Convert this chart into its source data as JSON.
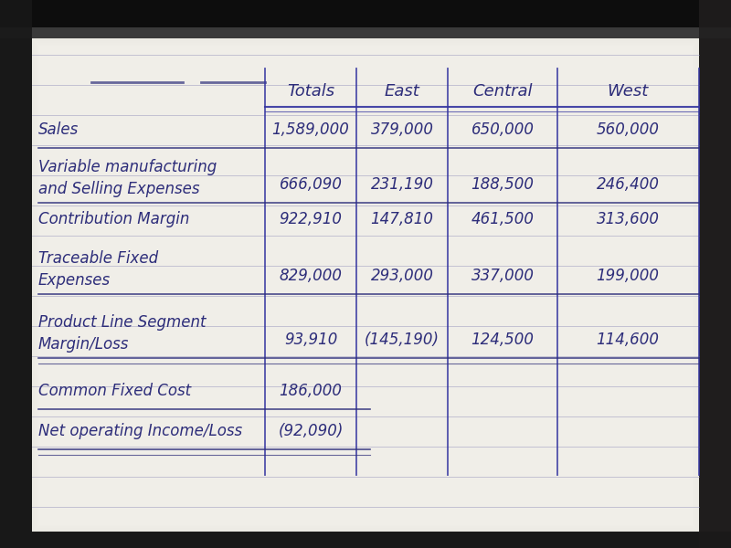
{
  "columns": [
    "Totals",
    "East",
    "Central",
    "West"
  ],
  "rows": [
    {
      "label": "Sales",
      "values": [
        "1,589,000",
        "379,000",
        "650,000",
        "560,000"
      ],
      "underline_full": true,
      "underline_short": false,
      "double_underline": false
    },
    {
      "label": "Variable manufacturing\nand Selling Expenses",
      "values": [
        "666,090",
        "231,190",
        "188,500",
        "246,400"
      ],
      "underline_full": true,
      "underline_short": false,
      "double_underline": false
    },
    {
      "label": "Contribution Margin",
      "values": [
        "922,910",
        "147,810",
        "461,500",
        "313,600"
      ],
      "underline_full": false,
      "underline_short": false,
      "double_underline": false
    },
    {
      "label": "Traceable Fixed\nExpenses",
      "values": [
        "829,000",
        "293,000",
        "337,000",
        "199,000"
      ],
      "underline_full": true,
      "underline_short": false,
      "double_underline": false
    },
    {
      "label": "Product Line Segment\nMargin/Loss",
      "values": [
        "93,910",
        "(145,190)",
        "124,500",
        "114,600"
      ],
      "underline_full": true,
      "underline_short": false,
      "double_underline": true
    },
    {
      "label": "Common Fixed Cost",
      "values": [
        "186,000",
        "",
        "",
        ""
      ],
      "underline_full": false,
      "underline_short": true,
      "double_underline": false
    },
    {
      "label": "Net operating Income/Loss",
      "values": [
        "(92,090)",
        "",
        "",
        ""
      ],
      "underline_full": false,
      "underline_short": true,
      "double_underline": true
    }
  ],
  "paper_color": "#f0eee8",
  "paper_color2": "#e8e6e0",
  "dark_border": "#1a1a1a",
  "ink_color": "#2d2d7a",
  "ruled_line_color": "#9090b8",
  "col_line_color": "#3535a0"
}
